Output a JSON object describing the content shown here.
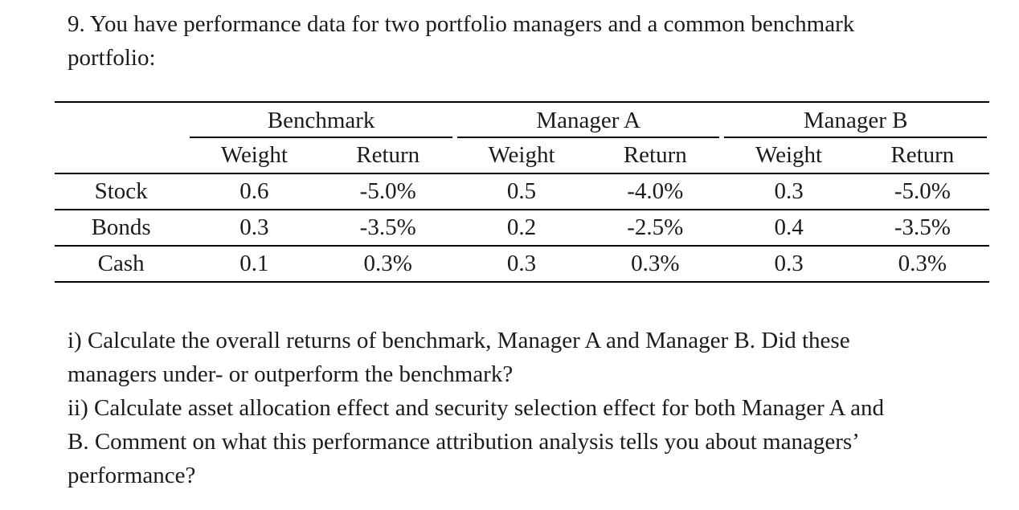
{
  "document": {
    "background": "#ffffff",
    "text_color": "#1b1b1b",
    "rule_color": "#000000"
  },
  "question": {
    "intro_lines": [
      "9. You have performance data for two portfolio managers and a common benchmark",
      "portfolio:"
    ]
  },
  "table": {
    "groups": [
      {
        "label": "Benchmark"
      },
      {
        "label": "Manager A"
      },
      {
        "label": "Manager B"
      }
    ],
    "subheaders": [
      "Weight",
      "Return"
    ],
    "rows": [
      {
        "label": "Stock",
        "values": [
          "0.6",
          "-5.0%",
          "0.5",
          "-4.0%",
          "0.3",
          "-5.0%"
        ]
      },
      {
        "label": "Bonds",
        "values": [
          "0.3",
          "-3.5%",
          "0.2",
          "-2.5%",
          "0.4",
          "-3.5%"
        ]
      },
      {
        "label": "Cash",
        "values": [
          "0.1",
          "0.3%",
          "0.3",
          "0.3%",
          "0.3",
          "0.3%"
        ]
      }
    ]
  },
  "tasks": {
    "lines": [
      "i) Calculate the overall returns of benchmark, Manager A and Manager B. Did these",
      "managers under- or outperform the benchmark?",
      "ii) Calculate asset allocation effect and security selection effect for both Manager A and",
      "B. Comment on what this performance attribution analysis tells you about managers’",
      "performance?"
    ]
  }
}
